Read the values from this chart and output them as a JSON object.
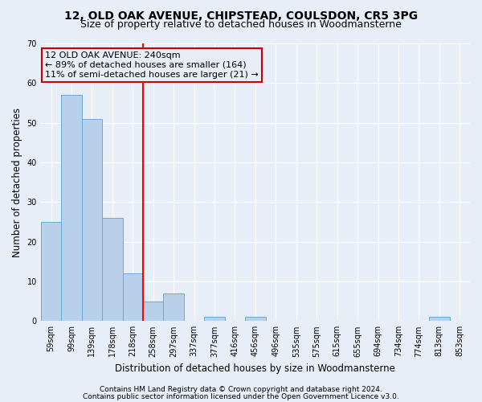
{
  "title": "12, OLD OAK AVENUE, CHIPSTEAD, COULSDON, CR5 3PG",
  "subtitle": "Size of property relative to detached houses in Woodmansterne",
  "xlabel": "Distribution of detached houses by size in Woodmansterne",
  "ylabel": "Number of detached properties",
  "categories": [
    "59sqm",
    "99sqm",
    "139sqm",
    "178sqm",
    "218sqm",
    "258sqm",
    "297sqm",
    "337sqm",
    "377sqm",
    "416sqm",
    "456sqm",
    "496sqm",
    "535sqm",
    "575sqm",
    "615sqm",
    "655sqm",
    "694sqm",
    "734sqm",
    "774sqm",
    "813sqm",
    "853sqm"
  ],
  "values": [
    25,
    57,
    51,
    26,
    12,
    5,
    7,
    0,
    1,
    0,
    1,
    0,
    0,
    0,
    0,
    0,
    0,
    0,
    0,
    1,
    0
  ],
  "bar_color": "#b8d0ea",
  "bar_edge_color": "#6aaad4",
  "red_line_x": 4.5,
  "annotation_line1": "12 OLD OAK AVENUE: 240sqm",
  "annotation_line2": "← 89% of detached houses are smaller (164)",
  "annotation_line3": "11% of semi-detached houses are larger (21) →",
  "annotation_box_edge": "#cc0000",
  "ylim": [
    0,
    70
  ],
  "yticks": [
    0,
    10,
    20,
    30,
    40,
    50,
    60,
    70
  ],
  "footer1": "Contains HM Land Registry data © Crown copyright and database right 2024.",
  "footer2": "Contains public sector information licensed under the Open Government Licence v3.0.",
  "bg_color": "#e8eef8",
  "grid_color": "#ffffff",
  "title_fontsize": 10,
  "subtitle_fontsize": 9,
  "axis_label_fontsize": 8.5,
  "tick_fontsize": 7,
  "footer_fontsize": 6.5,
  "annotation_fontsize": 8
}
